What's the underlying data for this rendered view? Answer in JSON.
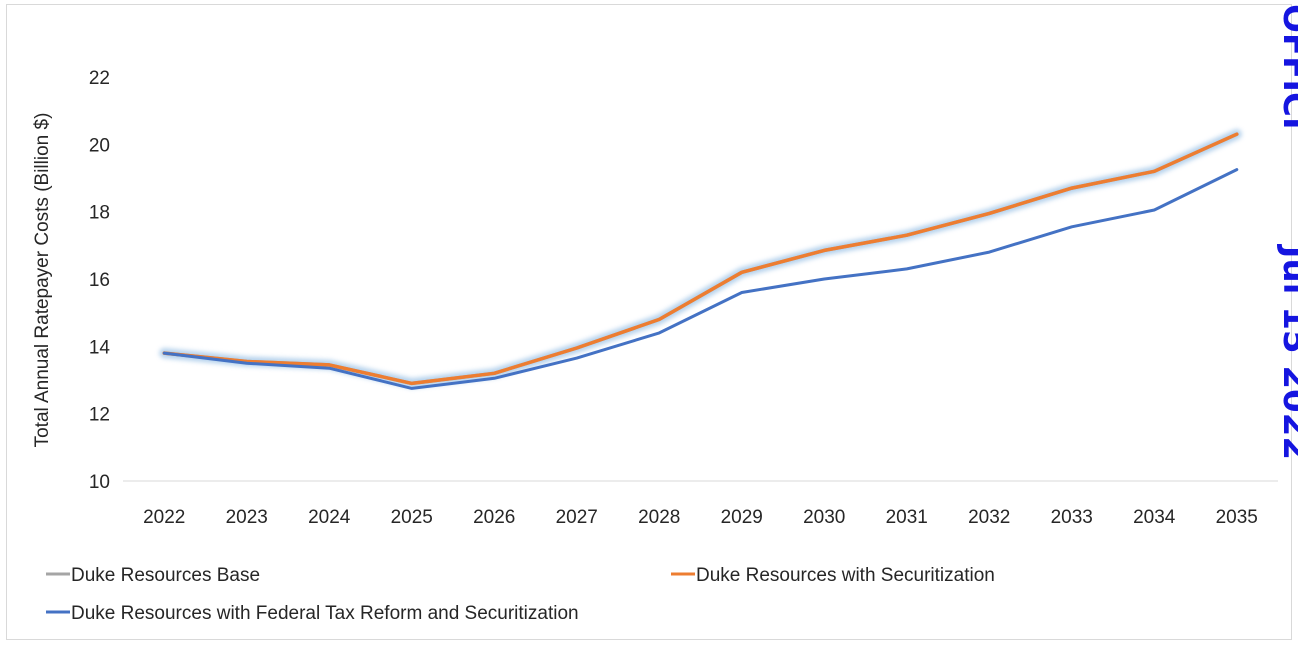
{
  "chart_data": {
    "type": "line",
    "title": "",
    "xlabel": "",
    "ylabel": "Total Annual Ratepayer Costs (Billion $)",
    "ylim": [
      10,
      22
    ],
    "yticks": [
      10,
      12,
      14,
      16,
      18,
      20,
      22
    ],
    "categories": [
      "2022",
      "2023",
      "2024",
      "2025",
      "2026",
      "2027",
      "2028",
      "2029",
      "2030",
      "2031",
      "2032",
      "2033",
      "2034",
      "2035"
    ],
    "grid": false,
    "legend_position": "bottom",
    "series": [
      {
        "name": "Duke Resources Base",
        "color": "#a5a5a5",
        "values": [
          13.8,
          13.55,
          13.45,
          12.9,
          13.2,
          13.95,
          14.8,
          16.2,
          16.85,
          17.3,
          17.95,
          18.7,
          19.2,
          20.3
        ]
      },
      {
        "name": "Duke Resources with Securitization",
        "color": "#ed7d31",
        "values": [
          13.8,
          13.55,
          13.45,
          12.9,
          13.2,
          13.95,
          14.8,
          16.2,
          16.85,
          17.3,
          17.95,
          18.7,
          19.2,
          20.3
        ]
      },
      {
        "name": "Duke Resources with Federal Tax Reform and Securitization",
        "color": "#4472c4",
        "values": [
          13.8,
          13.5,
          13.35,
          12.75,
          13.05,
          13.65,
          14.4,
          15.6,
          16.0,
          16.3,
          16.8,
          17.55,
          18.05,
          19.25
        ]
      }
    ]
  },
  "stamp": {
    "top_text": "OFFICI",
    "bottom_text": "Jul 15 2022",
    "color": "#1515e0"
  }
}
